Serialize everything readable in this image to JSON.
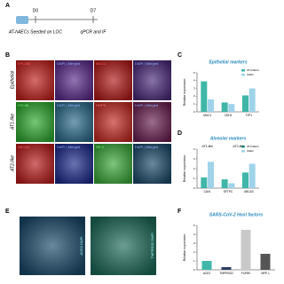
{
  "panel_labels": [
    "A",
    "B",
    "C",
    "D",
    "E",
    "F"
  ],
  "panel_a": {
    "day_start": "D0",
    "day_end": "D7",
    "seed_text": "AT-hAECs Seeded on LOC",
    "readout": "qPCR and IF"
  },
  "panel_b": {
    "rows": [
      {
        "name": "Epithelial",
        "stains": [
          "EPCAM",
          "DAPI | Merged",
          "MUC1",
          "DAPI | Merged"
        ]
      },
      {
        "name": "AT1-like",
        "stains": [
          "HTI-56",
          "DAPI | Merged",
          "HOPX",
          "DAPI | Merged"
        ]
      },
      {
        "name": "AT2-like",
        "stains": [
          "ABCA3",
          "DAPI | Merged",
          "SP-C",
          "DAPI | Merged"
        ]
      }
    ]
  },
  "panel_e": {
    "stains": [
      "ACE2 DAPI",
      "TMPRSS2 DAPI"
    ]
  },
  "chart_data": [
    {
      "type": "bar",
      "title": "Epithelial markers",
      "y_label": "Relative expression",
      "categories": [
        "MUC1",
        "CDH1",
        "TJP1"
      ],
      "series": [
        {
          "name": "AT-hAECs",
          "color": "#3fb6a8",
          "values": [
            3.9,
            1.2,
            2.1
          ]
        },
        {
          "name": "hAEC",
          "color": "#9fd3ea",
          "values": [
            1.6,
            1.0,
            3.0
          ]
        }
      ],
      "ylim": [
        0,
        5
      ],
      "yticks": [
        0,
        1,
        2,
        3,
        4,
        5
      ]
    },
    {
      "type": "bar",
      "title": "Alveolar markers",
      "y_label": "Relative expression",
      "categories": [
        "CAV1",
        "SFTPC",
        "ABCA3"
      ],
      "group_labels": [
        "AT1-like",
        "AT2-like"
      ],
      "series": [
        {
          "name": "AT-hAECs",
          "color": "#3fb6a8",
          "values": [
            1.1,
            0.9,
            1.6
          ]
        },
        {
          "name": "hAEC",
          "color": "#9fd3ea",
          "values": [
            2.7,
            0.5,
            2.5
          ]
        }
      ],
      "ylim": [
        0,
        4
      ],
      "yticks": [
        0,
        1,
        2,
        3,
        4
      ]
    },
    {
      "type": "bar",
      "title": "SARS-CoV-2 Host factors",
      "y_label": "Relative expression",
      "categories": [
        "ACE2",
        "TMPRSS2",
        "FURIN",
        "NRP-1"
      ],
      "values": [
        1.0,
        0.3,
        4.5,
        1.8
      ],
      "colors": [
        "#3fb6a8",
        "#2b3e63",
        "#c9c9c9",
        "#555555"
      ],
      "ylim": [
        0,
        5
      ],
      "yticks": [
        0,
        1,
        2,
        3,
        4,
        5
      ]
    }
  ]
}
